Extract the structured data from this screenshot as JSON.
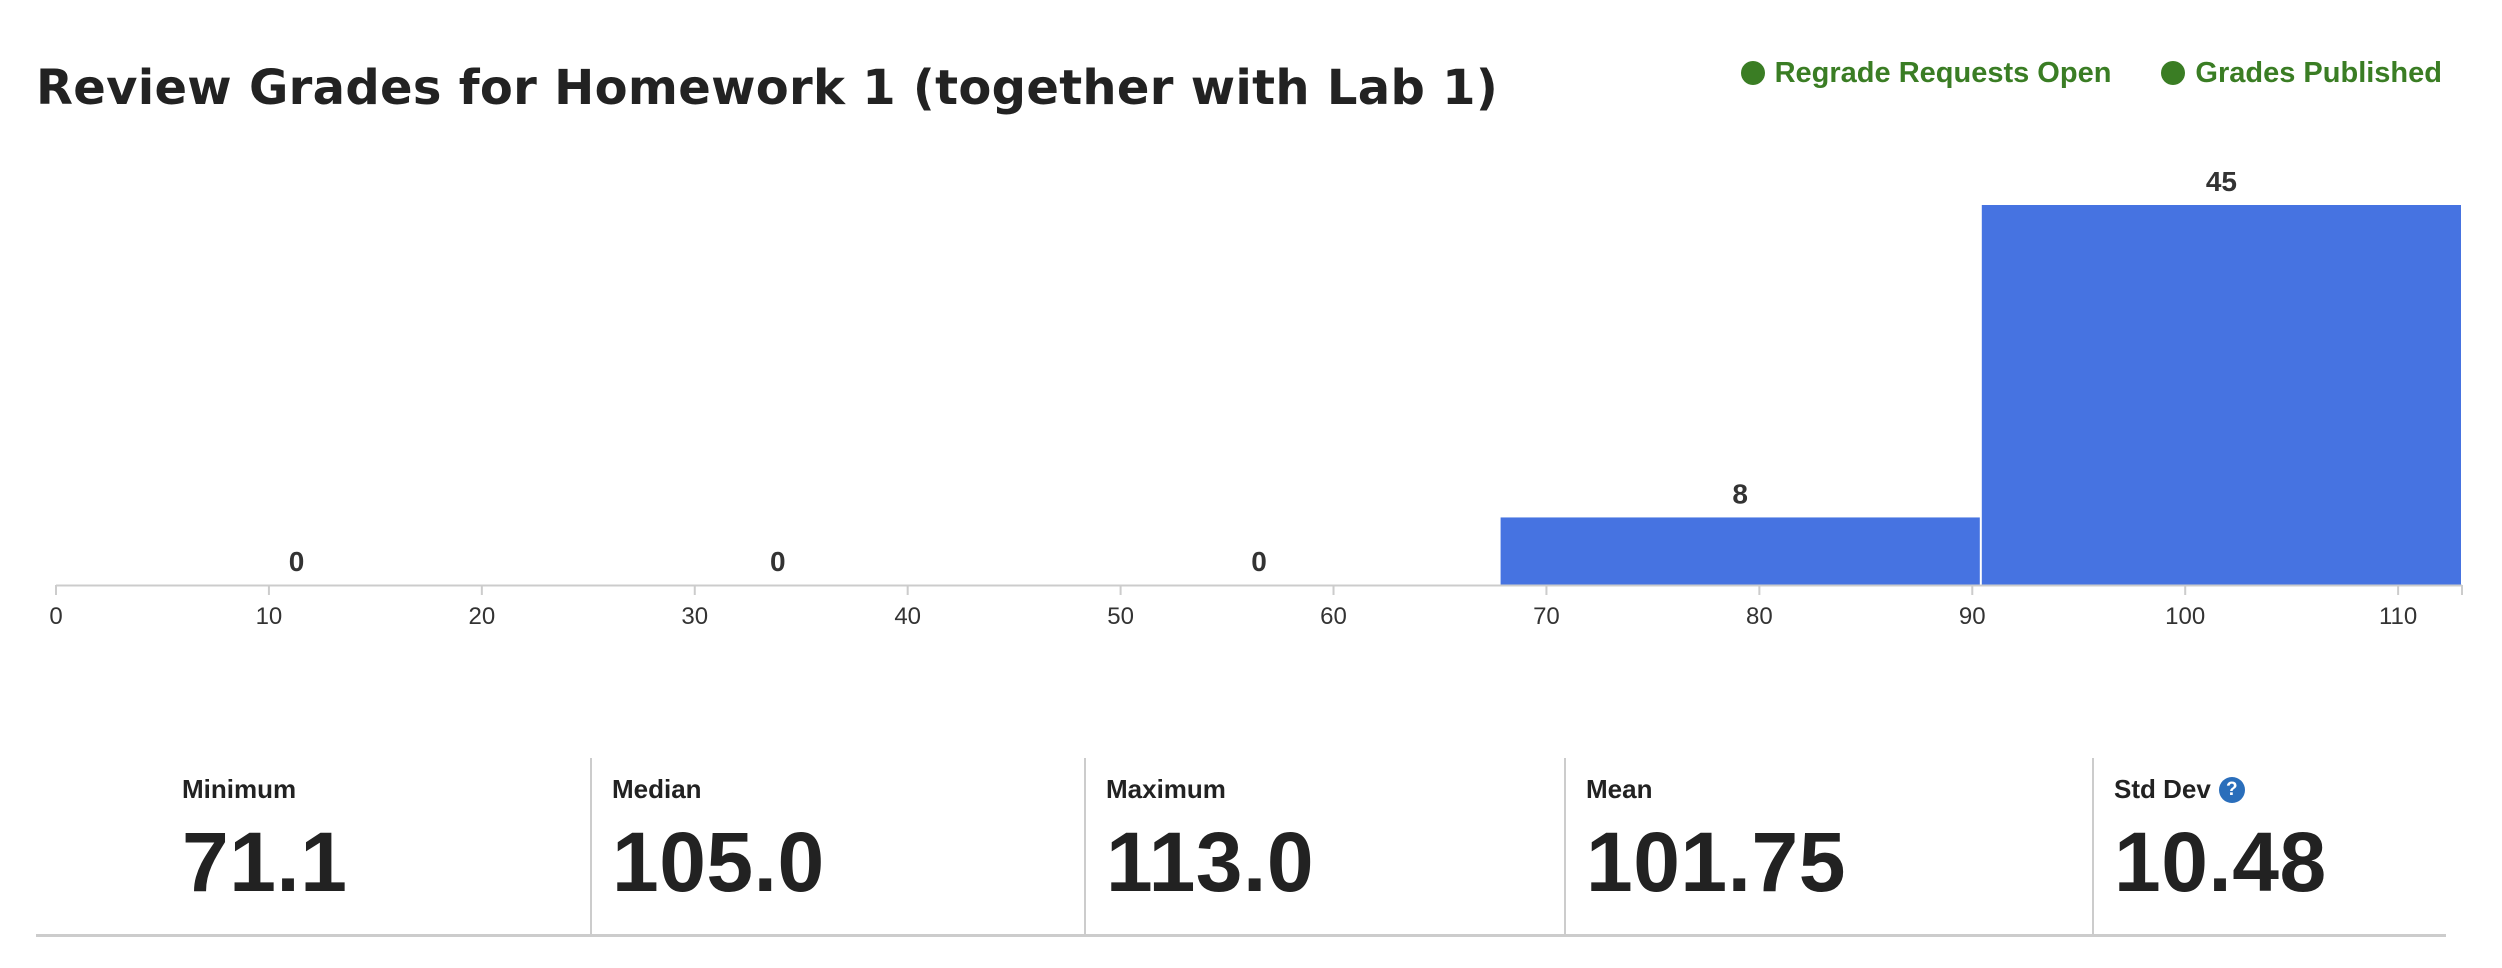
{
  "header": {
    "title": "Review Grades for Homework 1 (together with Lab 1)"
  },
  "status": {
    "regrade_requests": "Regrade Requests Open",
    "grades_published": "Grades Published",
    "color": "#3a7d24"
  },
  "chart_data": {
    "type": "bar",
    "title": "",
    "xlabel": "",
    "ylabel": "",
    "bar_color": "#4673e1",
    "xlim": [
      0,
      113
    ],
    "x_ticks": [
      0,
      10,
      20,
      30,
      40,
      50,
      60,
      70,
      80,
      90,
      100,
      110
    ],
    "bins": [
      {
        "start": 0,
        "end": 22.6,
        "value": 0
      },
      {
        "start": 22.6,
        "end": 45.2,
        "value": 0
      },
      {
        "start": 45.2,
        "end": 67.8,
        "value": 0
      },
      {
        "start": 67.8,
        "end": 90.4,
        "value": 8
      },
      {
        "start": 90.4,
        "end": 113,
        "value": 45
      }
    ],
    "ylim": [
      0,
      45
    ],
    "grid": false
  },
  "stats": {
    "minimum": {
      "label": "Minimum",
      "value": "71.1"
    },
    "median": {
      "label": "Median",
      "value": "105.0"
    },
    "maximum": {
      "label": "Maximum",
      "value": "113.0"
    },
    "mean": {
      "label": "Mean",
      "value": "101.75"
    },
    "std_dev": {
      "label": "Std Dev",
      "value": "10.48",
      "help_icon": "question-circle-icon",
      "help_glyph": "?"
    }
  }
}
